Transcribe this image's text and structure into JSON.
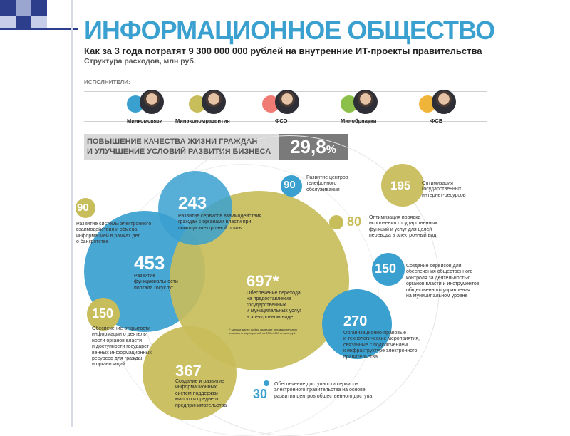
{
  "header": {
    "title": "ИНФОРМАЦИОННОЕ ОБЩЕСТВО",
    "subtitle": "Как  за  3 года потратят 9 300 000 000 рублей на внутренние ИТ-проекты правительства",
    "subtitle2": "Структура расходов, млн руб."
  },
  "executors": {
    "label": "ИСПОЛНИТЕЛИ:",
    "items": [
      {
        "name": "Минкомсвязи",
        "color": "#3aa0cf"
      },
      {
        "name": "Минэкономразвития",
        "color": "#c8bd5b"
      },
      {
        "name": "ФСО",
        "color": "#f07a74"
      },
      {
        "name": "Минобрнауки",
        "color": "#8cc04a"
      },
      {
        "name": "ФСБ",
        "color": "#f1b43a"
      }
    ]
  },
  "banner": {
    "line1": "ПОВЫШЕНИЕ КАЧЕСТВА ЖИЗНИ ГРАЖДАН",
    "line2": "И УЛУЧШЕНИЕ УСЛОВИЙ РАЗВИТИЯ БИЗНЕСА",
    "value": "29,8",
    "unit": "%"
  },
  "colors": {
    "blue": "#3aa0cf",
    "olive": "#c8bd5b",
    "title": "#3aa0cf"
  },
  "items": [
    {
      "value": "90",
      "label": "Развитие системы электронного\nвзаимодействия и обмена\nинформацией в рамках дел\nо банкротстве"
    },
    {
      "value": "243",
      "label": "Развитие сервисов взаимодействия\nграждан с органами власти при\nпомощи электронной почты"
    },
    {
      "value": "453",
      "label": "Развитие\nфункциональности\nпортала госуслуг"
    },
    {
      "value": "697*",
      "label": "Обеспечение перехода\nна предоставление\nгосударственных\nи муниципальных услуг\nв электронном виде"
    },
    {
      "value": "150",
      "label": "Обеспечение открытости\nинформации о деятель-\nности органов власти\nи доступности государст-\nвенных информационных\nресурсов для граждан\nи организаций"
    },
    {
      "value": "367",
      "label": "Создание и развитие\nинформационных\nсистем поддержки\nмалого и среднего\nпредпринимательства"
    },
    {
      "value": "90",
      "label": "Развитие центров\nтелефонного\nобслуживания"
    },
    {
      "value": "195",
      "label": "Оптимизация\nгосударственных\nинтернет-ресурсов"
    },
    {
      "value": "80",
      "label": "Оптимизация порядка\nисполнения государственных\nфункций и услуг для целей\nперевода в электронный вид"
    },
    {
      "value": "150",
      "label": "Создание сервисов для\nобеспечения общественного\nконтроля за деятельностью\nорганов власти и инструментов\nобщественного управления\nна муниципальном уровне"
    },
    {
      "value": "270",
      "label": "Организационно-правовые\nи технологические мероприятия,\nсвязанные с подключением\nк инфраструктуре электронного\nправительства"
    },
    {
      "value": "30",
      "label": "Обеспечение доступности сервисов\nэлектронного правительства на основе\nразвития центров общественного доступа"
    }
  ],
  "footnote": "* здесь и далее цифра включает предварительную\nстоимость мероприятий на 2011-2013 гг., млн руб."
}
